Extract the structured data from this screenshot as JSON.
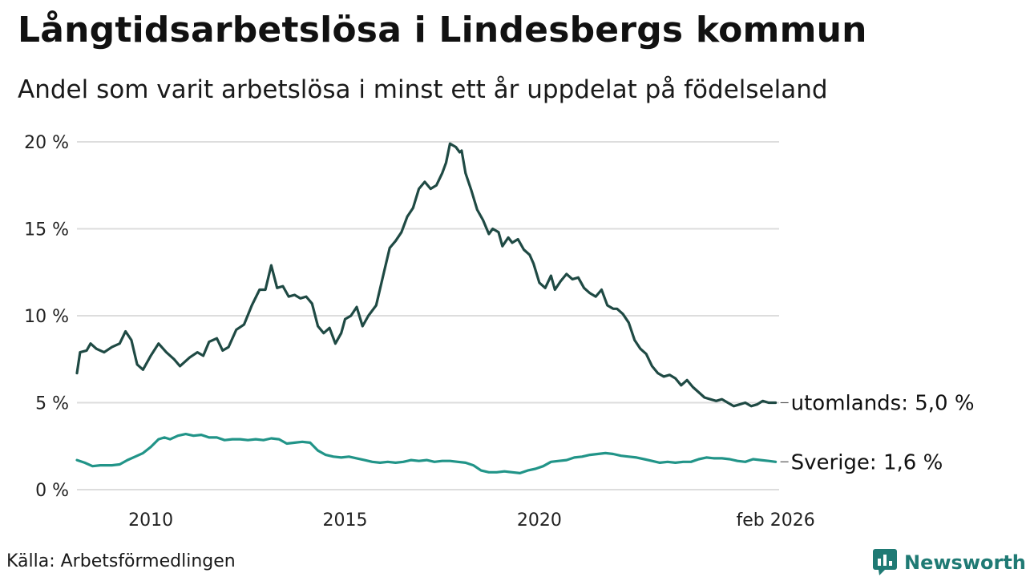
{
  "title": "Långtidsarbetslösa i Lindesbergs kommun",
  "subtitle": "Andel som varit arbetslösa i minst ett år uppdelat på födelseland",
  "source": "Källa: Arbetsförmedlingen",
  "brand": "Newsworthy",
  "colors": {
    "foreign": "#1f4a44",
    "sweden": "#219488",
    "grid": "#dddddd",
    "brand": "#1f7a74"
  },
  "chart_data": {
    "type": "line",
    "x_unit": "year (decimal)",
    "xlim": [
      2008.1,
      2026.17
    ],
    "ylim": [
      0,
      20
    ],
    "yticks": [
      0,
      5,
      10,
      15,
      20
    ],
    "ytick_labels": [
      "0 %",
      "5 %",
      "10 %",
      "15 %",
      "20 %"
    ],
    "xticks": [
      {
        "value": 2010,
        "label": "2010"
      },
      {
        "value": 2015,
        "label": "2015"
      },
      {
        "value": 2020,
        "label": "2020"
      },
      {
        "value": 2026.08,
        "label": "feb 2026"
      }
    ],
    "series": [
      {
        "name": "utomlands",
        "end_label": "utomlands: 5,0 %",
        "points": [
          [
            2008.1,
            6.7
          ],
          [
            2008.18,
            7.9
          ],
          [
            2008.35,
            8.0
          ],
          [
            2008.45,
            8.4
          ],
          [
            2008.6,
            8.1
          ],
          [
            2008.8,
            7.9
          ],
          [
            2009.0,
            8.2
          ],
          [
            2009.2,
            8.4
          ],
          [
            2009.35,
            9.1
          ],
          [
            2009.5,
            8.6
          ],
          [
            2009.65,
            7.2
          ],
          [
            2009.8,
            6.9
          ],
          [
            2010.0,
            7.7
          ],
          [
            2010.2,
            8.4
          ],
          [
            2010.4,
            7.9
          ],
          [
            2010.6,
            7.5
          ],
          [
            2010.75,
            7.1
          ],
          [
            2011.0,
            7.6
          ],
          [
            2011.2,
            7.9
          ],
          [
            2011.35,
            7.7
          ],
          [
            2011.5,
            8.5
          ],
          [
            2011.7,
            8.7
          ],
          [
            2011.85,
            8.0
          ],
          [
            2012.0,
            8.2
          ],
          [
            2012.2,
            9.2
          ],
          [
            2012.4,
            9.5
          ],
          [
            2012.6,
            10.6
          ],
          [
            2012.8,
            11.5
          ],
          [
            2012.95,
            11.5
          ],
          [
            2013.1,
            12.9
          ],
          [
            2013.25,
            11.6
          ],
          [
            2013.4,
            11.7
          ],
          [
            2013.55,
            11.1
          ],
          [
            2013.7,
            11.2
          ],
          [
            2013.85,
            11.0
          ],
          [
            2014.0,
            11.1
          ],
          [
            2014.15,
            10.7
          ],
          [
            2014.3,
            9.4
          ],
          [
            2014.45,
            9.0
          ],
          [
            2014.6,
            9.3
          ],
          [
            2014.75,
            8.4
          ],
          [
            2014.9,
            9.0
          ],
          [
            2015.0,
            9.8
          ],
          [
            2015.15,
            10.0
          ],
          [
            2015.3,
            10.5
          ],
          [
            2015.45,
            9.4
          ],
          [
            2015.6,
            10.0
          ],
          [
            2015.8,
            10.6
          ],
          [
            2016.0,
            12.5
          ],
          [
            2016.15,
            13.9
          ],
          [
            2016.3,
            14.3
          ],
          [
            2016.45,
            14.8
          ],
          [
            2016.6,
            15.7
          ],
          [
            2016.75,
            16.2
          ],
          [
            2016.9,
            17.3
          ],
          [
            2017.05,
            17.7
          ],
          [
            2017.2,
            17.3
          ],
          [
            2017.35,
            17.5
          ],
          [
            2017.5,
            18.2
          ],
          [
            2017.6,
            18.8
          ],
          [
            2017.7,
            19.9
          ],
          [
            2017.85,
            19.7
          ],
          [
            2017.95,
            19.4
          ],
          [
            2018.0,
            19.5
          ],
          [
            2018.1,
            18.2
          ],
          [
            2018.25,
            17.2
          ],
          [
            2018.4,
            16.1
          ],
          [
            2018.55,
            15.5
          ],
          [
            2018.7,
            14.7
          ],
          [
            2018.8,
            15.0
          ],
          [
            2018.95,
            14.8
          ],
          [
            2019.05,
            14.0
          ],
          [
            2019.2,
            14.5
          ],
          [
            2019.3,
            14.2
          ],
          [
            2019.45,
            14.4
          ],
          [
            2019.6,
            13.8
          ],
          [
            2019.75,
            13.5
          ],
          [
            2019.85,
            13.0
          ],
          [
            2020.0,
            11.9
          ],
          [
            2020.15,
            11.6
          ],
          [
            2020.3,
            12.3
          ],
          [
            2020.4,
            11.5
          ],
          [
            2020.55,
            12.0
          ],
          [
            2020.7,
            12.4
          ],
          [
            2020.85,
            12.1
          ],
          [
            2021.0,
            12.2
          ],
          [
            2021.15,
            11.6
          ],
          [
            2021.3,
            11.3
          ],
          [
            2021.45,
            11.1
          ],
          [
            2021.6,
            11.5
          ],
          [
            2021.75,
            10.6
          ],
          [
            2021.9,
            10.4
          ],
          [
            2022.0,
            10.4
          ],
          [
            2022.15,
            10.1
          ],
          [
            2022.3,
            9.6
          ],
          [
            2022.45,
            8.6
          ],
          [
            2022.6,
            8.1
          ],
          [
            2022.75,
            7.8
          ],
          [
            2022.9,
            7.1
          ],
          [
            2023.05,
            6.7
          ],
          [
            2023.2,
            6.5
          ],
          [
            2023.35,
            6.6
          ],
          [
            2023.5,
            6.4
          ],
          [
            2023.65,
            6.0
          ],
          [
            2023.8,
            6.3
          ],
          [
            2023.95,
            5.9
          ],
          [
            2024.1,
            5.6
          ],
          [
            2024.25,
            5.3
          ],
          [
            2024.4,
            5.2
          ],
          [
            2024.55,
            5.1
          ],
          [
            2024.7,
            5.2
          ],
          [
            2024.85,
            5.0
          ],
          [
            2025.0,
            4.8
          ],
          [
            2025.15,
            4.9
          ],
          [
            2025.3,
            5.0
          ],
          [
            2025.45,
            4.8
          ],
          [
            2025.6,
            4.9
          ],
          [
            2025.75,
            5.1
          ],
          [
            2025.9,
            5.0
          ],
          [
            2026.08,
            5.0
          ]
        ]
      },
      {
        "name": "Sverige",
        "end_label": "Sverige: 1,6 %",
        "points": [
          [
            2008.1,
            1.7
          ],
          [
            2008.3,
            1.55
          ],
          [
            2008.5,
            1.35
          ],
          [
            2008.7,
            1.4
          ],
          [
            2009.0,
            1.4
          ],
          [
            2009.2,
            1.45
          ],
          [
            2009.4,
            1.7
          ],
          [
            2009.6,
            1.9
          ],
          [
            2009.8,
            2.1
          ],
          [
            2010.0,
            2.45
          ],
          [
            2010.2,
            2.9
          ],
          [
            2010.35,
            3.0
          ],
          [
            2010.5,
            2.9
          ],
          [
            2010.7,
            3.1
          ],
          [
            2010.9,
            3.2
          ],
          [
            2011.1,
            3.1
          ],
          [
            2011.3,
            3.15
          ],
          [
            2011.5,
            3.0
          ],
          [
            2011.7,
            3.0
          ],
          [
            2011.9,
            2.85
          ],
          [
            2012.1,
            2.9
          ],
          [
            2012.3,
            2.9
          ],
          [
            2012.5,
            2.85
          ],
          [
            2012.7,
            2.9
          ],
          [
            2012.9,
            2.85
          ],
          [
            2013.1,
            2.95
          ],
          [
            2013.3,
            2.9
          ],
          [
            2013.5,
            2.65
          ],
          [
            2013.7,
            2.7
          ],
          [
            2013.9,
            2.75
          ],
          [
            2014.1,
            2.7
          ],
          [
            2014.3,
            2.25
          ],
          [
            2014.5,
            2.0
          ],
          [
            2014.7,
            1.9
          ],
          [
            2014.9,
            1.85
          ],
          [
            2015.1,
            1.9
          ],
          [
            2015.3,
            1.8
          ],
          [
            2015.5,
            1.7
          ],
          [
            2015.7,
            1.6
          ],
          [
            2015.9,
            1.55
          ],
          [
            2016.1,
            1.6
          ],
          [
            2016.3,
            1.55
          ],
          [
            2016.5,
            1.6
          ],
          [
            2016.7,
            1.7
          ],
          [
            2016.9,
            1.65
          ],
          [
            2017.1,
            1.7
          ],
          [
            2017.3,
            1.6
          ],
          [
            2017.5,
            1.65
          ],
          [
            2017.7,
            1.65
          ],
          [
            2017.9,
            1.6
          ],
          [
            2018.1,
            1.55
          ],
          [
            2018.3,
            1.4
          ],
          [
            2018.5,
            1.1
          ],
          [
            2018.7,
            1.0
          ],
          [
            2018.9,
            1.0
          ],
          [
            2019.1,
            1.05
          ],
          [
            2019.3,
            1.0
          ],
          [
            2019.5,
            0.95
          ],
          [
            2019.7,
            1.1
          ],
          [
            2019.9,
            1.2
          ],
          [
            2020.1,
            1.35
          ],
          [
            2020.3,
            1.6
          ],
          [
            2020.5,
            1.65
          ],
          [
            2020.7,
            1.7
          ],
          [
            2020.9,
            1.85
          ],
          [
            2021.1,
            1.9
          ],
          [
            2021.3,
            2.0
          ],
          [
            2021.5,
            2.05
          ],
          [
            2021.7,
            2.1
          ],
          [
            2021.9,
            2.05
          ],
          [
            2022.1,
            1.95
          ],
          [
            2022.3,
            1.9
          ],
          [
            2022.5,
            1.85
          ],
          [
            2022.7,
            1.75
          ],
          [
            2022.9,
            1.65
          ],
          [
            2023.1,
            1.55
          ],
          [
            2023.3,
            1.6
          ],
          [
            2023.5,
            1.55
          ],
          [
            2023.7,
            1.6
          ],
          [
            2023.9,
            1.6
          ],
          [
            2024.1,
            1.75
          ],
          [
            2024.3,
            1.85
          ],
          [
            2024.5,
            1.8
          ],
          [
            2024.7,
            1.8
          ],
          [
            2024.9,
            1.75
          ],
          [
            2025.1,
            1.65
          ],
          [
            2025.3,
            1.6
          ],
          [
            2025.5,
            1.75
          ],
          [
            2025.7,
            1.7
          ],
          [
            2025.9,
            1.65
          ],
          [
            2026.08,
            1.6
          ]
        ]
      }
    ]
  }
}
